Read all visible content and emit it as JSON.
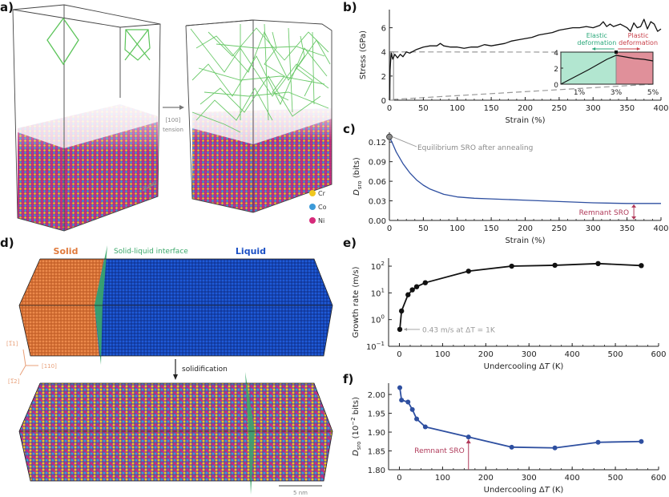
{
  "figure": {
    "panel_labels": {
      "a": "a)",
      "b": "b)",
      "c": "c)",
      "d": "d)",
      "e": "e)",
      "f": "f)"
    }
  },
  "panel_a": {
    "arrow_label_line1": "[100]",
    "arrow_label_line2": "tension",
    "scale_bar": "5 nm",
    "legend": [
      {
        "label": "Cr",
        "color": "#f0c81e"
      },
      {
        "label": "Co",
        "color": "#3c9ad8"
      },
      {
        "label": "Ni",
        "color": "#d62a7a"
      }
    ],
    "dislocation_color": "#5cc45a"
  },
  "panel_d": {
    "solid_label": "Solid",
    "interface_label": "Solid-liquid interface",
    "liquid_label": "Liquid",
    "solid_color": "#e07a3c",
    "liquid_color": "#1a4fc4",
    "interface_color": "#3aa86a",
    "direction_labels": [
      "[1ī1]",
      "[110]",
      "[11̅̅2]"
    ],
    "direction_labels_display": [
      "[1̅1]",
      "[110]",
      "[1̅2]"
    ],
    "arrow_label": "solidification",
    "scale_bar": "5 nm"
  },
  "chart_data": [
    {
      "id": "b",
      "type": "line",
      "title": "",
      "xlabel": "Strain (%)",
      "ylabel": "Stress (GPa)",
      "xlim": [
        0,
        400
      ],
      "ylim": [
        0,
        7.5
      ],
      "xticks": [
        0,
        50,
        100,
        150,
        200,
        250,
        300,
        350,
        400
      ],
      "yticks": [
        0,
        2,
        4,
        6
      ],
      "series": [
        {
          "name": "stress",
          "color": "#111111",
          "x": [
            0,
            1,
            2,
            3,
            4,
            5,
            8,
            12,
            16,
            20,
            25,
            30,
            40,
            50,
            60,
            70,
            75,
            80,
            90,
            100,
            110,
            120,
            130,
            140,
            150,
            160,
            170,
            180,
            190,
            200,
            210,
            220,
            230,
            240,
            250,
            260,
            270,
            280,
            290,
            300,
            310,
            315,
            320,
            325,
            330,
            340,
            350,
            355,
            360,
            365,
            370,
            375,
            380,
            385,
            390,
            395,
            400
          ],
          "y": [
            0,
            2.5,
            3.4,
            3.9,
            3.6,
            3.4,
            3.8,
            3.5,
            3.8,
            3.6,
            4.0,
            3.9,
            4.2,
            4.4,
            4.5,
            4.5,
            4.7,
            4.5,
            4.4,
            4.4,
            4.3,
            4.4,
            4.4,
            4.6,
            4.5,
            4.6,
            4.7,
            4.9,
            5.0,
            5.1,
            5.2,
            5.4,
            5.5,
            5.6,
            5.8,
            5.9,
            6.0,
            6.0,
            6.1,
            6.0,
            6.2,
            6.5,
            6.1,
            6.3,
            6.1,
            6.3,
            6.0,
            5.7,
            6.4,
            6.0,
            6.1,
            6.7,
            5.9,
            6.5,
            6.3,
            5.7,
            5.9
          ]
        }
      ],
      "annotations": [
        {
          "text": "Elastic deformation",
          "color": "#2aa87a"
        },
        {
          "text": "Plastic deformation",
          "color": "#c8404a"
        }
      ],
      "inset": {
        "xlim": [
          0,
          5
        ],
        "ylim": [
          0,
          4
        ],
        "xticks": [
          1,
          3,
          5
        ],
        "xtick_labels": [
          "1%",
          "3%",
          "5%"
        ],
        "yticks": [
          0,
          2,
          4
        ],
        "elastic_region": [
          0,
          3
        ],
        "plastic_region": [
          3,
          5
        ],
        "elastic_color": "#b2e6d0",
        "plastic_color": "#e0909a",
        "x": [
          0,
          0.5,
          1,
          1.5,
          2,
          2.5,
          3,
          3.5,
          4,
          4.5,
          5
        ],
        "y": [
          0,
          0.6,
          1.2,
          1.8,
          2.45,
          3.1,
          3.6,
          3.4,
          3.2,
          3.1,
          2.9
        ]
      }
    },
    {
      "id": "c",
      "type": "line",
      "xlabel": "Strain (%)",
      "ylabel": "D_SRO (bits)",
      "ylabel_main": "D",
      "ylabel_sub": "SRO",
      "ylabel_rest": " (bits)",
      "xlim": [
        0,
        400
      ],
      "ylim": [
        0,
        0.135
      ],
      "xticks": [
        0,
        50,
        100,
        150,
        200,
        250,
        300,
        350,
        400
      ],
      "yticks": [
        0.0,
        0.03,
        0.06,
        0.09,
        0.12
      ],
      "ytick_labels": [
        "0.00",
        "0.03",
        "0.06",
        "0.09",
        "0.12"
      ],
      "series": [
        {
          "name": "D_SRO",
          "color": "#2e4fa0",
          "x": [
            0,
            5,
            10,
            20,
            30,
            40,
            50,
            60,
            70,
            80,
            90,
            100,
            125,
            150,
            200,
            250,
            300,
            350,
            400
          ],
          "y": [
            0.128,
            0.117,
            0.105,
            0.087,
            0.073,
            0.062,
            0.054,
            0.048,
            0.044,
            0.04,
            0.038,
            0.036,
            0.034,
            0.033,
            0.031,
            0.029,
            0.027,
            0.026,
            0.026
          ]
        }
      ],
      "annotations": [
        {
          "text": "Equilibrium SRO after annealing",
          "x": 0,
          "y": 0.128,
          "color": "#8a8a8a"
        },
        {
          "text": "Remnant SRO",
          "x": 360,
          "y": 0.026,
          "color": "#b03a5a"
        }
      ]
    },
    {
      "id": "e",
      "type": "line",
      "yscale": "log",
      "xlabel": "Undercooling ΔT (K)",
      "xlabel_pre": "Undercooling Δ",
      "xlabel_it": "T",
      "xlabel_post": " (K)",
      "ylabel": "Growth rate (m/s)",
      "xlim": [
        -25,
        600
      ],
      "ylim": [
        0.1,
        200
      ],
      "xticks": [
        0,
        100,
        200,
        300,
        400,
        500,
        600
      ],
      "yticks": [
        0.1,
        1,
        10,
        100
      ],
      "ytick_exponents": [
        "−1",
        "0",
        "1",
        "2"
      ],
      "series": [
        {
          "name": "growth rate",
          "color": "#111111",
          "x": [
            1,
            5,
            20,
            30,
            40,
            60,
            160,
            260,
            360,
            460,
            560
          ],
          "y": [
            0.43,
            2.1,
            8.5,
            13,
            17,
            24,
            65,
            100,
            108,
            125,
            105
          ]
        }
      ],
      "annotations": [
        {
          "text": "0.43 m/s at ΔT = 1K",
          "x": 1,
          "y": 0.43,
          "color": "#9a9a9a"
        }
      ]
    },
    {
      "id": "f",
      "type": "line",
      "xlabel": "Undercooling ΔT (K)",
      "xlabel_pre": "Undercooling Δ",
      "xlabel_it": "T",
      "xlabel_post": " (K)",
      "ylabel": "D_SRO (10^-2 bits)",
      "ylabel_main": "D",
      "ylabel_sub": "SRO",
      "ylabel_rest": " (10",
      "ylabel_sup": "−2",
      "ylabel_end": " bits)",
      "xlim": [
        -25,
        600
      ],
      "ylim": [
        1.8,
        2.03
      ],
      "xticks": [
        0,
        100,
        200,
        300,
        400,
        500,
        600
      ],
      "yticks": [
        1.8,
        1.85,
        1.9,
        1.95,
        2.0
      ],
      "ytick_labels": [
        "1.80",
        "1.85",
        "1.90",
        "1.95",
        "2.00"
      ],
      "series": [
        {
          "name": "D_SRO",
          "color": "#2e4fa0",
          "x": [
            1,
            5,
            20,
            30,
            40,
            60,
            160,
            260,
            360,
            460,
            560
          ],
          "y": [
            2.018,
            1.985,
            1.98,
            1.96,
            1.935,
            1.914,
            1.887,
            1.86,
            1.858,
            1.873,
            1.875
          ]
        }
      ],
      "annotations": [
        {
          "text": "Remnant SRO",
          "x": 160,
          "y": 1.887,
          "color": "#b03a5a"
        }
      ]
    }
  ]
}
